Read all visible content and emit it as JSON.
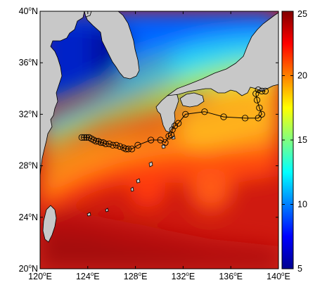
{
  "map": {
    "lon_range": [
      120,
      140
    ],
    "lat_range": [
      20,
      40
    ],
    "x_ticks": [
      {
        "value": 120,
        "num": "120",
        "hemi": "E"
      },
      {
        "value": 124,
        "num": "124",
        "hemi": "E"
      },
      {
        "value": 128,
        "num": "128",
        "hemi": "E"
      },
      {
        "value": 132,
        "num": "132",
        "hemi": "E"
      },
      {
        "value": 136,
        "num": "136",
        "hemi": "E"
      },
      {
        "value": 140,
        "num": "140",
        "hemi": "E"
      }
    ],
    "y_ticks": [
      {
        "value": 20,
        "num": "20",
        "hemi": "N"
      },
      {
        "value": 24,
        "num": "24",
        "hemi": "N"
      },
      {
        "value": 28,
        "num": "28",
        "hemi": "N"
      },
      {
        "value": 32,
        "num": "32",
        "hemi": "N"
      },
      {
        "value": 36,
        "num": "36",
        "hemi": "N"
      },
      {
        "value": 40,
        "num": "40",
        "hemi": "N"
      }
    ],
    "degree_symbol": "o",
    "land_color": "#c8c8c8",
    "colorbar": {
      "min": 5,
      "max": 25,
      "ticks": [
        "25",
        "20",
        "15",
        "10",
        "5"
      ],
      "colormap": "jet"
    },
    "track_points": [
      [
        123.5,
        30.2
      ],
      [
        123.7,
        30.2
      ],
      [
        123.9,
        30.2
      ],
      [
        124.1,
        30.2
      ],
      [
        124.3,
        30.1
      ],
      [
        124.5,
        30.0
      ],
      [
        124.7,
        29.9
      ],
      [
        124.9,
        29.9
      ],
      [
        125.1,
        29.8
      ],
      [
        125.3,
        29.8
      ],
      [
        125.5,
        29.7
      ],
      [
        125.8,
        29.7
      ],
      [
        126.1,
        29.6
      ],
      [
        126.4,
        29.6
      ],
      [
        126.7,
        29.5
      ],
      [
        127.0,
        29.4
      ],
      [
        127.2,
        29.3
      ],
      [
        127.4,
        29.3
      ],
      [
        127.7,
        29.3
      ],
      [
        128.2,
        29.6
      ],
      [
        129.3,
        30.0
      ],
      [
        130.1,
        30.0
      ],
      [
        130.5,
        29.8
      ],
      [
        130.8,
        30.3
      ],
      [
        131.0,
        30.4
      ],
      [
        131.1,
        30.8
      ],
      [
        131.3,
        31.1
      ],
      [
        131.6,
        31.3
      ],
      [
        132.2,
        32.0
      ],
      [
        133.8,
        32.2
      ],
      [
        135.4,
        31.8
      ],
      [
        137.2,
        31.7
      ],
      [
        138.3,
        31.7
      ],
      [
        138.6,
        32.0
      ],
      [
        138.4,
        32.5
      ],
      [
        138.2,
        33.1
      ],
      [
        138.1,
        33.6
      ],
      [
        138.3,
        33.9
      ],
      [
        138.6,
        33.8
      ],
      [
        138.9,
        33.8
      ]
    ]
  }
}
